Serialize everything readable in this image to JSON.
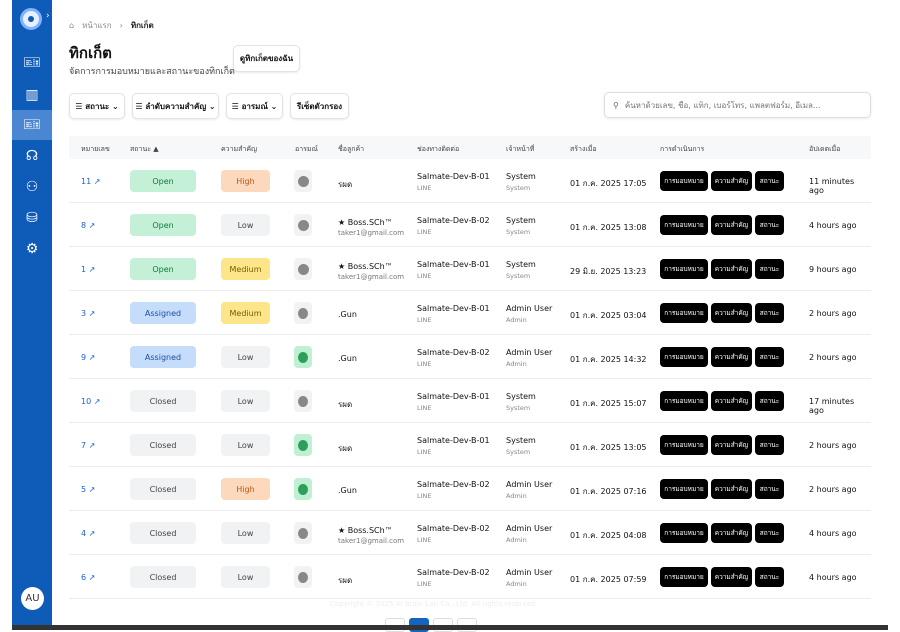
{
  "breadcrumb": {
    "home": "หน้าแรก",
    "current": "ทิกเก็ต"
  },
  "page": {
    "title": "ทิกเก็ต",
    "subtitle": "จัดการการมอบหมายและสถานะของทิกเก็ต",
    "my_tickets": "ดูทิกเก็ตของฉัน"
  },
  "filters": {
    "status": "สถานะ",
    "priority": "ลำดับความสำคัญ",
    "emotion": "อารมณ์",
    "reset": "รีเซ็ตตัวกรอง"
  },
  "search": {
    "placeholder": "ค้นหาด้วยเลข, ชื่อ, แท็ก, เบอร์โทร, แพลตฟอร์ม, อีเมล..."
  },
  "user": {
    "initials": "AU"
  },
  "columns": [
    "หมายเลข",
    "สถานะ ▲",
    "ความสำคัญ",
    "อารมณ์",
    "ชื่อลูกค้า",
    "ช่องทางติดต่อ",
    "เจ้าหน้าที่",
    "สร้างเมื่อ",
    "การดำเนินการ",
    "อัปเดตเมื่อ"
  ],
  "actions": [
    "การมอบหมาย",
    "ความสำคัญ",
    "สถานะ"
  ],
  "rows": [
    {
      "id": "11",
      "status": "Open",
      "priority": "High",
      "emotion": "none",
      "customer": "รผด",
      "email": "",
      "channel": "Salmate-Dev-B-01",
      "platform": "LINE",
      "agent": "System",
      "role": "System",
      "created": "01 ก.ค. 2025 17:05",
      "updated": "11 minutes ago"
    },
    {
      "id": "8",
      "status": "Open",
      "priority": "Low",
      "emotion": "none",
      "customer": "★ Boss.SCh™",
      "email": "taker1@gmail.com",
      "channel": "Salmate-Dev-B-02",
      "platform": "LINE",
      "agent": "System",
      "role": "System",
      "created": "01 ก.ค. 2025 13:08",
      "updated": "4 hours ago"
    },
    {
      "id": "1",
      "status": "Open",
      "priority": "Medium",
      "emotion": "none",
      "customer": "★ Boss.SCh™",
      "email": "taker1@gmail.com",
      "channel": "Salmate-Dev-B-01",
      "platform": "LINE",
      "agent": "System",
      "role": "System",
      "created": "29 มิ.ย. 2025 13:23",
      "updated": "9 hours ago"
    },
    {
      "id": "3",
      "status": "Assigned",
      "priority": "Medium",
      "emotion": "neutral",
      "customer": ".Gun",
      "email": "",
      "channel": "Salmate-Dev-B-01",
      "platform": "LINE",
      "agent": "Admin User",
      "role": "Admin",
      "created": "01 ก.ค. 2025 03:04",
      "updated": "2 hours ago"
    },
    {
      "id": "9",
      "status": "Assigned",
      "priority": "Low",
      "emotion": "happy",
      "customer": ".Gun",
      "email": "",
      "channel": "Salmate-Dev-B-02",
      "platform": "LINE",
      "agent": "Admin User",
      "role": "Admin",
      "created": "01 ก.ค. 2025 14:32",
      "updated": "2 hours ago"
    },
    {
      "id": "10",
      "status": "Closed",
      "priority": "Low",
      "emotion": "neutral",
      "customer": "รผด",
      "email": "",
      "channel": "Salmate-Dev-B-01",
      "platform": "LINE",
      "agent": "System",
      "role": "System",
      "created": "01 ก.ค. 2025 15:07",
      "updated": "17 minutes ago"
    },
    {
      "id": "7",
      "status": "Closed",
      "priority": "Low",
      "emotion": "happy",
      "customer": "รผด",
      "email": "",
      "channel": "Salmate-Dev-B-01",
      "platform": "LINE",
      "agent": "System",
      "role": "System",
      "created": "01 ก.ค. 2025 13:05",
      "updated": "2 hours ago"
    },
    {
      "id": "5",
      "status": "Closed",
      "priority": "High",
      "emotion": "happy",
      "customer": ".Gun",
      "email": "",
      "channel": "Salmate-Dev-B-02",
      "platform": "LINE",
      "agent": "Admin User",
      "role": "Admin",
      "created": "01 ก.ค. 2025 07:16",
      "updated": "2 hours ago"
    },
    {
      "id": "4",
      "status": "Closed",
      "priority": "Low",
      "emotion": "neutral",
      "customer": "★ Boss.SCh™",
      "email": "taker1@gmail.com",
      "channel": "Salmate-Dev-B-02",
      "platform": "LINE",
      "agent": "Admin User",
      "role": "Admin",
      "created": "01 ก.ค. 2025 04:08",
      "updated": "4 hours ago"
    },
    {
      "id": "6",
      "status": "Closed",
      "priority": "Low",
      "emotion": "neutral",
      "customer": "รผด",
      "email": "",
      "channel": "Salmate-Dev-B-02",
      "platform": "LINE",
      "agent": "Admin User",
      "role": "Admin",
      "created": "01 ก.ค. 2025 07:59",
      "updated": "4 hours ago"
    }
  ],
  "footer": {
    "copyright": "Copyright © 2025 AI Brain Lab Co., Ltd. All rights reserved"
  },
  "colors": {
    "sidebar": "#0f5bb8",
    "link": "#1a5fd6"
  }
}
